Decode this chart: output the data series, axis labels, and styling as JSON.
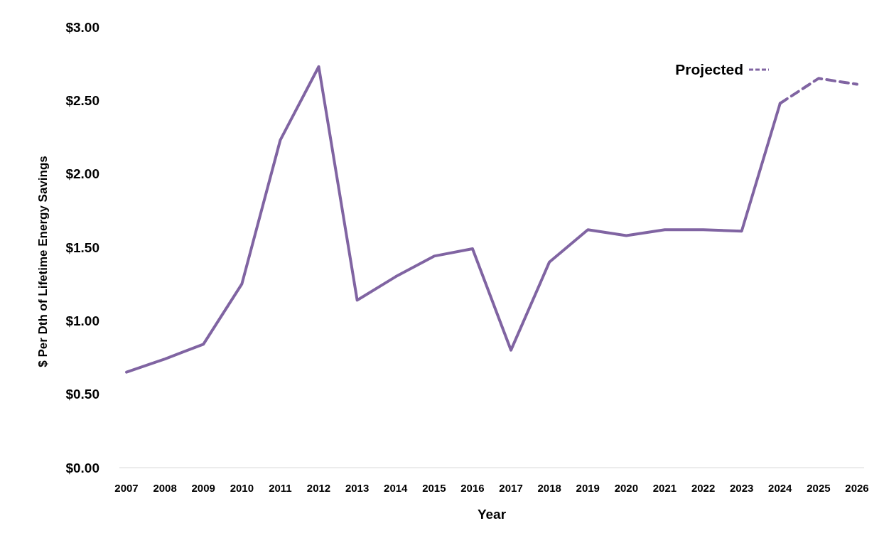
{
  "chart_data": {
    "type": "line",
    "xlabel": "Year",
    "ylabel": "$ Per Dth of Lifetime Energy Savings",
    "categories": [
      "2007",
      "2008",
      "2009",
      "2010",
      "2011",
      "2012",
      "2013",
      "2014",
      "2015",
      "2016",
      "2017",
      "2018",
      "2019",
      "2020",
      "2021",
      "2022",
      "2023",
      "2024",
      "2025",
      "2026"
    ],
    "series": [
      {
        "color": "#8064a2",
        "line_style": "solid",
        "values": [
          0.65,
          0.74,
          0.84,
          1.25,
          2.23,
          2.73,
          1.14,
          1.3,
          1.44,
          1.49,
          0.8,
          1.4,
          1.62,
          1.58,
          1.62,
          1.62,
          1.61,
          2.48,
          null,
          null
        ]
      },
      {
        "name": "Projected",
        "color": "#8064a2",
        "line_style": "dashed",
        "values": [
          null,
          null,
          null,
          null,
          null,
          null,
          null,
          null,
          null,
          null,
          null,
          null,
          null,
          null,
          null,
          null,
          null,
          2.48,
          2.65,
          2.61
        ]
      }
    ],
    "ylim": [
      0,
      3
    ],
    "yticks": [
      {
        "value": 0,
        "label": "$0.00"
      },
      {
        "value": 0.5,
        "label": "$0.50"
      },
      {
        "value": 1,
        "label": "$1.00"
      },
      {
        "value": 1.5,
        "label": "$1.50"
      },
      {
        "value": 2,
        "label": "$2.00"
      },
      {
        "value": 2.5,
        "label": "$2.50"
      },
      {
        "value": 3,
        "label": "$3.00"
      }
    ],
    "grid": false,
    "legend": "top right",
    "marker": "none"
  }
}
